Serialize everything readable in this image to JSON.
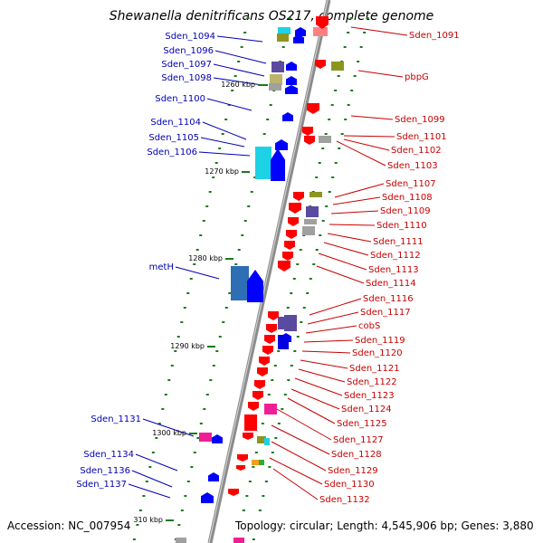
{
  "title": "Shewanella denitrificans OS217, complete genome",
  "footer": {
    "accession": "Accession: NC_007954",
    "topology": "Topology: circular; Length: 4,545,906 bp; Genes: 3,880"
  },
  "colors": {
    "backbone": "#8c8c8c",
    "forward_label": "#0000b4",
    "reverse_label": "#c80000",
    "tick": "#1a7a1a",
    "cog_cyan": "#1ed2e6",
    "cog_olive": "#8c961e",
    "cog_purple": "#5a4ba0",
    "cog_gray": "#a0a0a0",
    "cog_khaki": "#bcb46e",
    "cog_steel": "#2d6eb4",
    "cog_magenta": "#f01e96",
    "cog_green": "#32aa32",
    "cog_orange": "#f0a01e"
  },
  "scale_labels": [
    "1260 kbp",
    "1270 kbp",
    "1280 kbp",
    "1290 kbp",
    "1300 kbp",
    "310 kbp"
  ],
  "left_labels": [
    "Sden_1094",
    "Sden_1096",
    "Sden_1097",
    "Sden_1098",
    "Sden_1100",
    "Sden_1104",
    "Sden_1105",
    "Sden_1106",
    "metH",
    "Sden_1131",
    "Sden_1134",
    "Sden_1136",
    "Sden_1137"
  ],
  "right_labels": [
    "Sden_1091",
    "pbpG",
    "Sden_1099",
    "Sden_1101",
    "Sden_1102",
    "Sden_1103",
    "Sden_1107",
    "Sden_1108",
    "Sden_1109",
    "Sden_1110",
    "Sden_1111",
    "Sden_1112",
    "Sden_1113",
    "Sden_1114",
    "Sden_1116",
    "Sden_1117",
    "cobS",
    "Sden_1119",
    "Sden_1120",
    "Sden_1121",
    "Sden_1122",
    "Sden_1123",
    "Sden_1124",
    "Sden_1125",
    "Sden_1127",
    "Sden_1128",
    "Sden_1129",
    "Sden_1130",
    "Sden_1132"
  ]
}
